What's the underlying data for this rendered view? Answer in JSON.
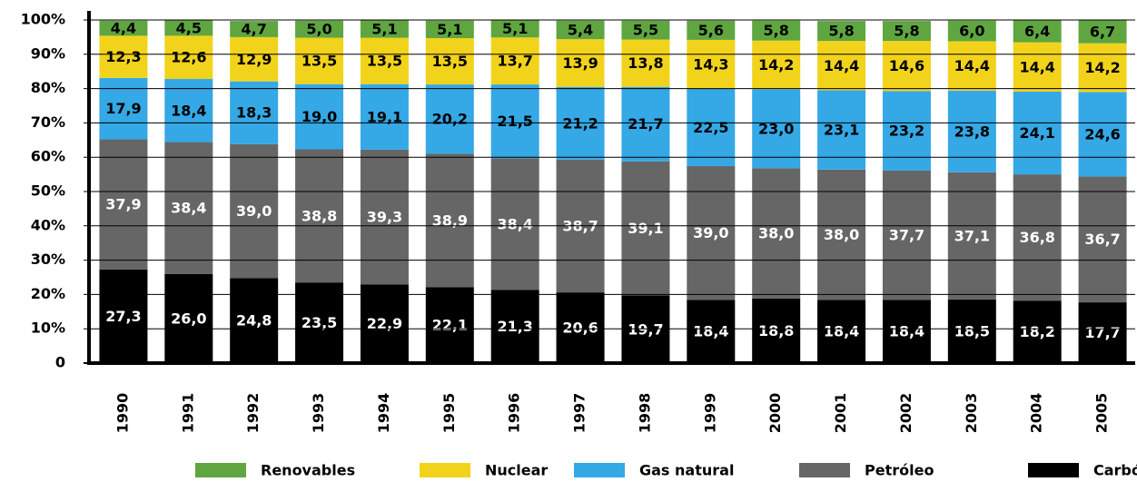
{
  "chart_data": {
    "type": "stacked_bar",
    "categories": [
      "1990",
      "1991",
      "1992",
      "1993",
      "1994",
      "1995",
      "1996",
      "1997",
      "1998",
      "1999",
      "2000",
      "2001",
      "2002",
      "2003",
      "2004",
      "2005"
    ],
    "series": [
      {
        "name": "Carbón",
        "color": "#000000",
        "label_color": "#ffffff",
        "values": [
          27.3,
          26.0,
          24.8,
          23.5,
          22.9,
          22.1,
          21.3,
          20.6,
          19.7,
          18.4,
          18.8,
          18.4,
          18.4,
          18.5,
          18.2,
          17.7
        ],
        "value_labels": [
          "27,3",
          "26,0",
          "24,8",
          "23,5",
          "22,9",
          "22,1",
          "21,3",
          "20,6",
          "19,7",
          "18,4",
          "18,8",
          "18,4",
          "18,4",
          "18,5",
          "18,2",
          "17,7"
        ]
      },
      {
        "name": "Petróleo",
        "color": "#666666",
        "label_color": "#ffffff",
        "values": [
          37.9,
          38.4,
          39.0,
          38.8,
          39.3,
          38.9,
          38.4,
          38.7,
          39.1,
          39.0,
          38.0,
          38.0,
          37.7,
          37.1,
          36.8,
          36.7
        ],
        "value_labels": [
          "37,9",
          "38,4",
          "39,0",
          "38,8",
          "39,3",
          "38,9",
          "38,4",
          "38,7",
          "39,1",
          "39,0",
          "38,0",
          "38,0",
          "37,7",
          "37,1",
          "36,8",
          "36,7"
        ]
      },
      {
        "name": "Gas natural",
        "color": "#35a8e6",
        "label_color": "#000000",
        "values": [
          17.9,
          18.4,
          18.3,
          19.0,
          19.1,
          20.2,
          21.5,
          21.2,
          21.7,
          22.5,
          23.0,
          23.1,
          23.2,
          23.8,
          24.1,
          24.6
        ],
        "value_labels": [
          "17,9",
          "18,4",
          "18,3",
          "19,0",
          "19,1",
          "20,2",
          "21,5",
          "21,2",
          "21,7",
          "22,5",
          "23,0",
          "23,1",
          "23,2",
          "23,8",
          "24,1",
          "24,6"
        ]
      },
      {
        "name": "Nuclear",
        "color": "#f2d31b",
        "label_color": "#000000",
        "values": [
          12.3,
          12.6,
          12.9,
          13.5,
          13.5,
          13.5,
          13.7,
          13.9,
          13.8,
          14.3,
          14.2,
          14.4,
          14.6,
          14.4,
          14.4,
          14.2
        ],
        "value_labels": [
          "12,3",
          "12,6",
          "12,9",
          "13,5",
          "13,5",
          "13,5",
          "13,7",
          "13,9",
          "13,8",
          "14,3",
          "14,2",
          "14,4",
          "14,6",
          "14,4",
          "14,4",
          "14,2"
        ]
      },
      {
        "name": "Renovables",
        "color": "#5fa641",
        "label_color": "#000000",
        "values": [
          4.4,
          4.5,
          4.7,
          5.0,
          5.1,
          5.1,
          5.1,
          5.4,
          5.5,
          5.6,
          5.8,
          5.8,
          5.8,
          6.0,
          6.4,
          6.7
        ],
        "value_labels": [
          "4,4",
          "4,5",
          "4,7",
          "5,0",
          "5,1",
          "5,1",
          "5,1",
          "5,4",
          "5,5",
          "5,6",
          "5,8",
          "5,8",
          "5,8",
          "6,0",
          "6,4",
          "6,7"
        ]
      }
    ],
    "ylim": [
      0,
      100
    ],
    "yticks": [
      0,
      {
        "value": 10,
        "label": "10%"
      },
      {
        "value": 20,
        "label": "20%"
      },
      {
        "value": 30,
        "label": "30%"
      },
      {
        "value": 40,
        "label": "40%"
      },
      {
        "value": 50,
        "label": "50%"
      },
      {
        "value": 60,
        "label": "60%"
      },
      {
        "value": 70,
        "label": "70%"
      },
      {
        "value": 80,
        "label": "80%"
      },
      {
        "value": 90,
        "label": "90%"
      },
      {
        "value": 100,
        "label": "100%"
      }
    ],
    "grid": true
  }
}
